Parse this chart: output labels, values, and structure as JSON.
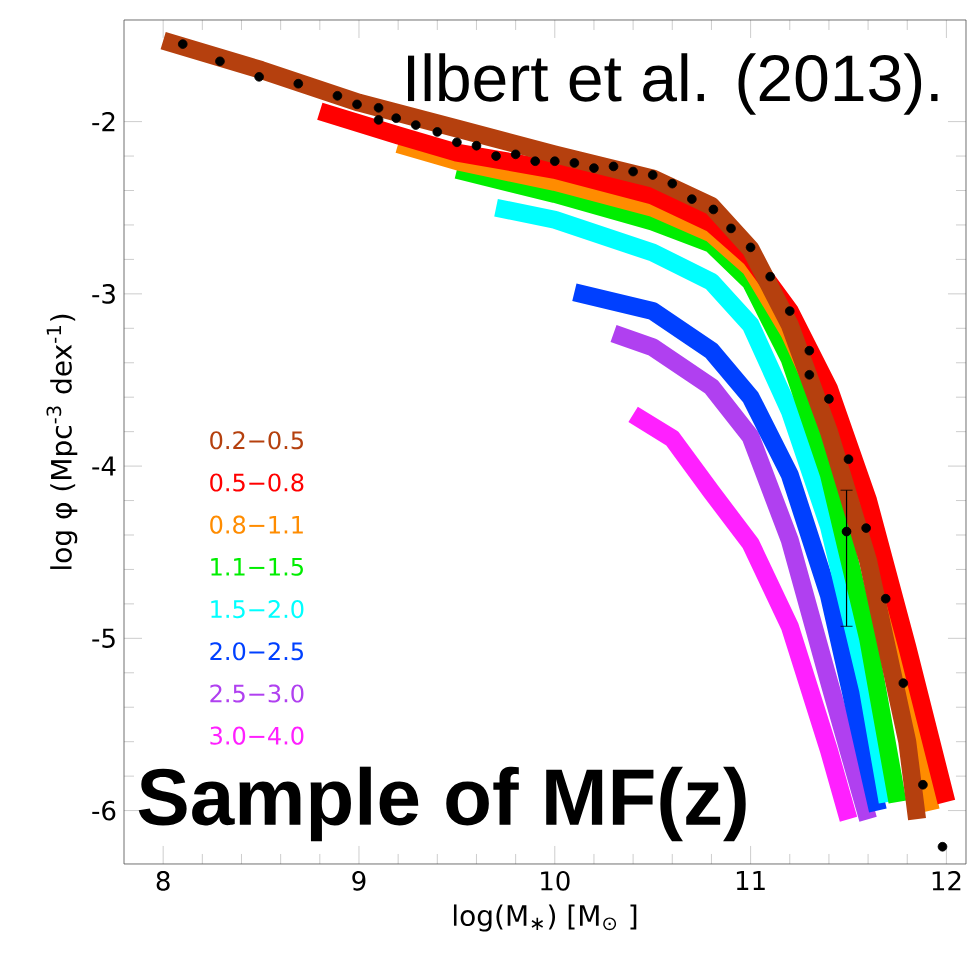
{
  "chart_data": {
    "type": "line",
    "xlabel": "log(M$_{∗}$) [M$_{⊙}$ ]",
    "ylabel": "log φ  (Mpc$^{-3}$ dex$^{-1}$)",
    "annotations": [
      "Ilbert et al. (2013).",
      "Sample of MF(z)"
    ],
    "xlim": [
      7.8,
      12.1
    ],
    "ylim": [
      -6.31,
      -1.41
    ],
    "xticks": [
      8,
      9,
      10,
      11,
      12
    ],
    "yticks": [
      -6,
      -5,
      -4,
      -3,
      -2
    ],
    "legend": "left",
    "series": [
      {
        "name": "0.2−0.5",
        "color": "#b5400e",
        "x": [
          8.0,
          8.5,
          9.0,
          9.5,
          10.0,
          10.5,
          10.8,
          11.0,
          11.2,
          11.4,
          11.6,
          11.8,
          11.85
        ],
        "values": [
          -1.53,
          -1.7,
          -1.89,
          -2.04,
          -2.19,
          -2.33,
          -2.49,
          -2.74,
          -3.18,
          -3.8,
          -4.55,
          -5.6,
          -6.05
        ]
      },
      {
        "name": "0.5−0.8",
        "color": "#ff0000",
        "x": [
          8.8,
          9.2,
          9.5,
          10.0,
          10.5,
          10.8,
          11.0,
          11.2,
          11.4,
          11.6,
          11.8,
          12.0
        ],
        "values": [
          -1.94,
          -2.08,
          -2.18,
          -2.28,
          -2.43,
          -2.59,
          -2.79,
          -3.1,
          -3.55,
          -4.2,
          -5.05,
          -5.95
        ]
      },
      {
        "name": "0.8−1.1",
        "color": "#ff8c00",
        "x": [
          9.2,
          9.5,
          10.0,
          10.5,
          10.8,
          11.0,
          11.2,
          11.4,
          11.6,
          11.8,
          11.92
        ],
        "values": [
          -2.13,
          -2.23,
          -2.35,
          -2.5,
          -2.65,
          -2.85,
          -3.23,
          -3.73,
          -4.4,
          -5.4,
          -6.0
        ]
      },
      {
        "name": "1.1−1.5",
        "color": "#00ee00",
        "x": [
          9.5,
          10.0,
          10.5,
          10.8,
          11.0,
          11.2,
          11.4,
          11.6,
          11.75
        ],
        "values": [
          -2.28,
          -2.42,
          -2.58,
          -2.71,
          -2.93,
          -3.38,
          -4.05,
          -5.0,
          -5.95
        ]
      },
      {
        "name": "1.5−2.0",
        "color": "#00ffff",
        "x": [
          9.7,
          10.0,
          10.5,
          10.8,
          11.0,
          11.2,
          11.4,
          11.6,
          11.7
        ],
        "values": [
          -2.5,
          -2.57,
          -2.76,
          -2.93,
          -3.18,
          -3.68,
          -4.35,
          -5.3,
          -5.95
        ]
      },
      {
        "name": "2.0−2.5",
        "color": "#0040ff",
        "x": [
          10.1,
          10.5,
          10.8,
          11.0,
          11.2,
          11.4,
          11.55,
          11.65
        ],
        "values": [
          -2.99,
          -3.1,
          -3.33,
          -3.6,
          -4.05,
          -4.75,
          -5.5,
          -6.0
        ]
      },
      {
        "name": "2.5−3.0",
        "color": "#b040f0",
        "x": [
          10.3,
          10.5,
          10.8,
          11.0,
          11.2,
          11.4,
          11.6
        ],
        "values": [
          -3.23,
          -3.31,
          -3.54,
          -3.83,
          -4.43,
          -5.25,
          -6.05
        ]
      },
      {
        "name": "3.0−4.0",
        "color": "#ff20ff",
        "x": [
          10.4,
          10.6,
          10.8,
          11.0,
          11.2,
          11.4,
          11.5
        ],
        "values": [
          -3.7,
          -3.84,
          -4.15,
          -4.45,
          -4.93,
          -5.65,
          -6.05
        ]
      },
      {
        "type": "scatter",
        "color": "#000000",
        "x": [
          8.1,
          8.29,
          8.49,
          8.69,
          8.89,
          8.99,
          9.1,
          9.1,
          9.19,
          9.29,
          9.4,
          9.5,
          9.6,
          9.7,
          9.8,
          9.9,
          10.0,
          10.1,
          10.2,
          10.3,
          10.4,
          10.5,
          10.6,
          10.7,
          10.81,
          10.9,
          11.0,
          11.1,
          11.2,
          11.3,
          11.3,
          11.4,
          11.5,
          11.49,
          11.59,
          11.69,
          11.78,
          11.88,
          11.98
        ],
        "values": [
          -1.55,
          -1.65,
          -1.74,
          -1.78,
          -1.85,
          -1.9,
          -1.92,
          -1.99,
          -1.98,
          -2.02,
          -2.06,
          -2.12,
          -2.14,
          -2.2,
          -2.19,
          -2.23,
          -2.23,
          -2.24,
          -2.27,
          -2.26,
          -2.29,
          -2.31,
          -2.36,
          -2.45,
          -2.51,
          -2.62,
          -2.73,
          -2.9,
          -3.1,
          -3.33,
          -3.47,
          -3.61,
          -3.96,
          -4.38,
          -4.36,
          -4.77,
          -5.26,
          -5.85,
          -6.21
        ],
        "errors": [
          null,
          null,
          null,
          null,
          null,
          null,
          null,
          null,
          null,
          null,
          null,
          null,
          null,
          null,
          null,
          null,
          null,
          null,
          null,
          null,
          null,
          null,
          null,
          null,
          null,
          null,
          null,
          null,
          null,
          null,
          null,
          null,
          null,
          [
            -4.93,
            -4.14
          ],
          null,
          null,
          null,
          null,
          null
        ]
      }
    ]
  }
}
